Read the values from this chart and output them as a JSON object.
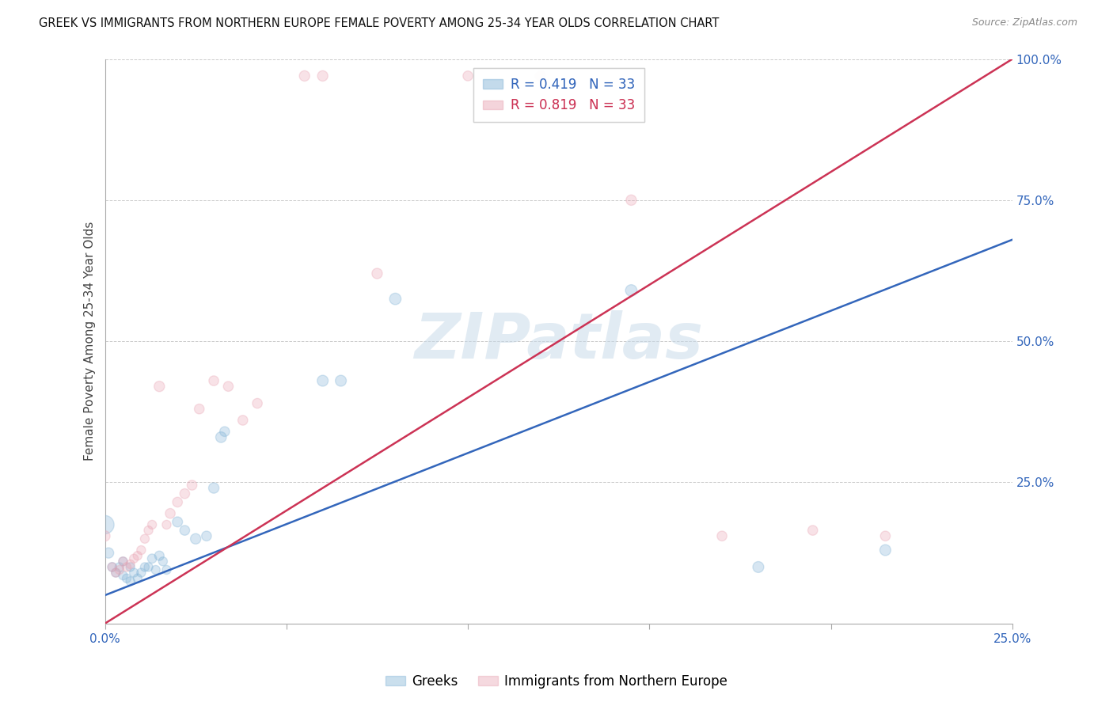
{
  "title": "GREEK VS IMMIGRANTS FROM NORTHERN EUROPE FEMALE POVERTY AMONG 25-34 YEAR OLDS CORRELATION CHART",
  "source": "Source: ZipAtlas.com",
  "ylabel": "Female Poverty Among 25-34 Year Olds",
  "xlim": [
    0.0,
    0.25
  ],
  "ylim": [
    0.0,
    1.0
  ],
  "xticks": [
    0.0,
    0.05,
    0.1,
    0.15,
    0.2,
    0.25
  ],
  "yticks": [
    0.0,
    0.25,
    0.5,
    0.75,
    1.0
  ],
  "xtick_labels": [
    "0.0%",
    "",
    "",
    "",
    "",
    "25.0%"
  ],
  "ytick_labels": [
    "",
    "25.0%",
    "50.0%",
    "75.0%",
    "100.0%"
  ],
  "blue_color": "#7bafd4",
  "pink_color": "#e8a0b0",
  "blue_line_color": "#3366bb",
  "pink_line_color": "#cc3355",
  "watermark": "ZIPatlas",
  "greeks_x": [
    0.0,
    0.001,
    0.002,
    0.003,
    0.004,
    0.005,
    0.005,
    0.006,
    0.007,
    0.007,
    0.008,
    0.009,
    0.01,
    0.011,
    0.012,
    0.013,
    0.014,
    0.015,
    0.016,
    0.017,
    0.02,
    0.022,
    0.025,
    0.028,
    0.03,
    0.032,
    0.033,
    0.06,
    0.065,
    0.08,
    0.145,
    0.18,
    0.215
  ],
  "greeks_y": [
    0.175,
    0.125,
    0.1,
    0.09,
    0.1,
    0.11,
    0.085,
    0.08,
    0.1,
    0.075,
    0.09,
    0.08,
    0.09,
    0.1,
    0.1,
    0.115,
    0.095,
    0.12,
    0.11,
    0.095,
    0.18,
    0.165,
    0.15,
    0.155,
    0.24,
    0.33,
    0.34,
    0.43,
    0.43,
    0.575,
    0.59,
    0.1,
    0.13
  ],
  "greeks_size": [
    280,
    90,
    70,
    65,
    65,
    65,
    65,
    65,
    65,
    65,
    65,
    65,
    65,
    65,
    65,
    70,
    65,
    75,
    65,
    65,
    85,
    80,
    90,
    80,
    90,
    95,
    80,
    100,
    100,
    110,
    110,
    100,
    100
  ],
  "immigrants_x": [
    0.0,
    0.002,
    0.003,
    0.004,
    0.005,
    0.006,
    0.007,
    0.008,
    0.009,
    0.01,
    0.011,
    0.012,
    0.013,
    0.015,
    0.017,
    0.018,
    0.02,
    0.022,
    0.024,
    0.026,
    0.03,
    0.034,
    0.038,
    0.042,
    0.055,
    0.06,
    0.075,
    0.1,
    0.12,
    0.145,
    0.17,
    0.195,
    0.215
  ],
  "immigrants_y": [
    0.155,
    0.1,
    0.09,
    0.095,
    0.11,
    0.1,
    0.105,
    0.115,
    0.12,
    0.13,
    0.15,
    0.165,
    0.175,
    0.42,
    0.175,
    0.195,
    0.215,
    0.23,
    0.245,
    0.38,
    0.43,
    0.42,
    0.36,
    0.39,
    0.97,
    0.97,
    0.62,
    0.97,
    0.97,
    0.75,
    0.155,
    0.165,
    0.155
  ],
  "immigrants_size": [
    90,
    65,
    65,
    65,
    65,
    65,
    65,
    65,
    65,
    65,
    65,
    65,
    65,
    90,
    65,
    80,
    80,
    80,
    80,
    80,
    80,
    80,
    80,
    80,
    90,
    90,
    90,
    80,
    80,
    90,
    80,
    80,
    80
  ],
  "blue_line_x": [
    0.0,
    0.25
  ],
  "blue_line_y": [
    0.05,
    0.68
  ],
  "pink_line_x": [
    0.0,
    0.25
  ],
  "pink_line_y": [
    0.0,
    1.0
  ]
}
